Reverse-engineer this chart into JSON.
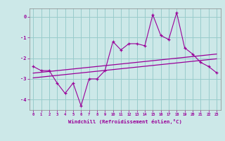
{
  "xlabel": "Windchill (Refroidissement éolien,°C)",
  "x_values": [
    0,
    1,
    2,
    3,
    4,
    5,
    6,
    7,
    8,
    9,
    10,
    11,
    12,
    13,
    14,
    15,
    16,
    17,
    18,
    19,
    20,
    21,
    22,
    23
  ],
  "main_line": [
    -2.4,
    -2.6,
    -2.6,
    -3.2,
    -3.7,
    -3.2,
    -4.3,
    -3.0,
    -3.0,
    -2.6,
    -1.2,
    -1.6,
    -1.3,
    -1.3,
    -1.4,
    0.1,
    -0.9,
    -1.1,
    0.2,
    -1.5,
    -1.8,
    -2.2,
    -2.4,
    -2.7
  ],
  "trend_line1": [
    -2.72,
    -2.68,
    -2.64,
    -2.6,
    -2.56,
    -2.52,
    -2.48,
    -2.44,
    -2.4,
    -2.36,
    -2.32,
    -2.28,
    -2.24,
    -2.2,
    -2.16,
    -2.12,
    -2.08,
    -2.04,
    -2.0,
    -1.96,
    -1.92,
    -1.88,
    -1.84,
    -1.8
  ],
  "trend_line2": [
    -2.95,
    -2.91,
    -2.87,
    -2.83,
    -2.79,
    -2.75,
    -2.71,
    -2.67,
    -2.63,
    -2.59,
    -2.55,
    -2.51,
    -2.47,
    -2.43,
    -2.39,
    -2.35,
    -2.31,
    -2.27,
    -2.23,
    -2.19,
    -2.15,
    -2.11,
    -2.07,
    -2.03
  ],
  "bg_color": "#cce8e8",
  "grid_color": "#99cccc",
  "line_color": "#990099",
  "ylim": [
    -4.5,
    0.4
  ],
  "xlim": [
    -0.5,
    23.5
  ]
}
